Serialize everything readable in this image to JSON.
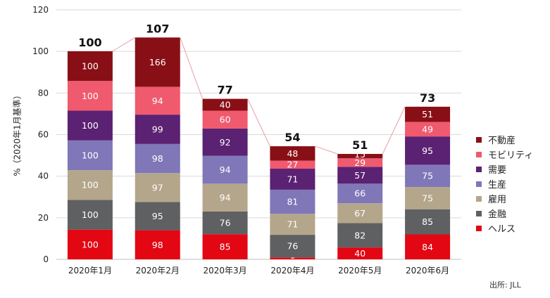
{
  "chart_data": {
    "type": "bar",
    "stacked": true,
    "ylabel": "%（2020年1月基準）",
    "ylim": [
      0,
      120
    ],
    "yticks": [
      0,
      20,
      40,
      60,
      80,
      100,
      120
    ],
    "grid": true,
    "legend_position": "right",
    "categories": [
      "2020年1月",
      "2020年2月",
      "2020年3月",
      "2020年4月",
      "2020年5月",
      "2020年6月"
    ],
    "totals": [
      100,
      107,
      77,
      54,
      51,
      73
    ],
    "series": [
      {
        "name": "ヘルス",
        "color": "#e30613",
        "heights": [
          14.3,
          14.0,
          12.1,
          0.9,
          5.7,
          12.0
        ],
        "labels": [
          100,
          98,
          85,
          6,
          40,
          84
        ]
      },
      {
        "name": "金融",
        "color": "#5f6062",
        "heights": [
          14.3,
          13.6,
          10.9,
          10.9,
          11.7,
          12.1
        ],
        "labels": [
          100,
          95,
          76,
          76,
          82,
          85
        ]
      },
      {
        "name": "雇用",
        "color": "#b4a68b",
        "heights": [
          14.3,
          13.9,
          13.4,
          10.1,
          9.6,
          10.7
        ],
        "labels": [
          100,
          97,
          94,
          71,
          67,
          75
        ]
      },
      {
        "name": "生産",
        "color": "#8077b8",
        "heights": [
          14.3,
          14.0,
          13.4,
          11.6,
          9.4,
          10.7
        ],
        "labels": [
          100,
          98,
          94,
          81,
          66,
          75
        ]
      },
      {
        "name": "需要",
        "color": "#5b2172",
        "heights": [
          14.3,
          14.1,
          13.1,
          10.1,
          8.1,
          13.6
        ],
        "labels": [
          100,
          99,
          92,
          71,
          57,
          95
        ]
      },
      {
        "name": "モビリティ",
        "color": "#f05a6e",
        "heights": [
          14.3,
          13.4,
          8.6,
          3.9,
          4.1,
          7.0
        ],
        "labels": [
          100,
          94,
          60,
          27,
          29,
          49
        ]
      },
      {
        "name": "不動産",
        "color": "#890f16",
        "heights": [
          14.3,
          23.7,
          5.7,
          6.9,
          2.1,
          7.3
        ],
        "labels": [
          100,
          166,
          40,
          48,
          15,
          51
        ]
      }
    ]
  },
  "source_note": "出所: JLL"
}
